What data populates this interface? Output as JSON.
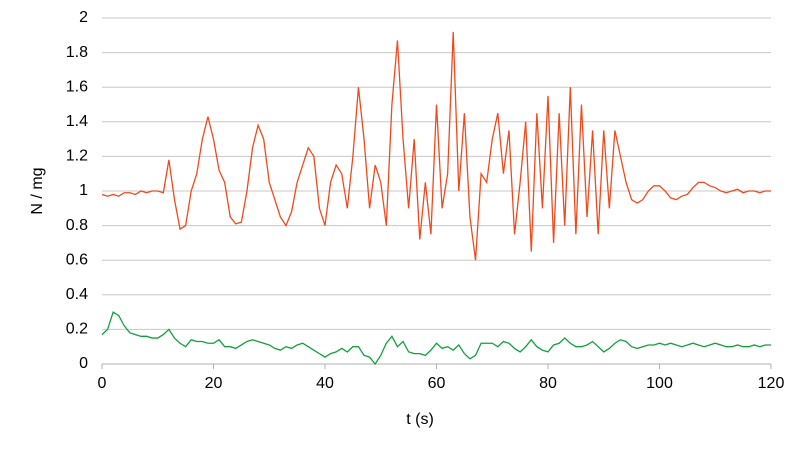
{
  "chart_data": {
    "type": "line",
    "x_label": "t (s)",
    "y_label": "N / mg",
    "x": [
      0,
      1,
      2,
      3,
      4,
      5,
      6,
      7,
      8,
      9,
      10,
      11,
      12,
      13,
      14,
      15,
      16,
      17,
      18,
      19,
      20,
      21,
      22,
      23,
      24,
      25,
      26,
      27,
      28,
      29,
      30,
      31,
      32,
      33,
      34,
      35,
      36,
      37,
      38,
      39,
      40,
      41,
      42,
      43,
      44,
      45,
      46,
      47,
      48,
      49,
      50,
      51,
      52,
      53,
      54,
      55,
      56,
      57,
      58,
      59,
      60,
      61,
      62,
      63,
      64,
      65,
      66,
      67,
      68,
      69,
      70,
      71,
      72,
      73,
      74,
      75,
      76,
      77,
      78,
      79,
      80,
      81,
      82,
      83,
      84,
      85,
      86,
      87,
      88,
      89,
      90,
      91,
      92,
      93,
      94,
      95,
      96,
      97,
      98,
      99,
      100,
      101,
      102,
      103,
      104,
      105,
      106,
      107,
      108,
      109,
      110,
      111,
      112,
      113,
      114,
      115,
      116,
      117,
      118,
      119,
      120
    ],
    "series": [
      {
        "color": "#f04a1c",
        "values": [
          0.98,
          0.97,
          0.98,
          0.97,
          0.99,
          0.99,
          0.98,
          1.0,
          0.99,
          1.0,
          1.0,
          0.99,
          1.18,
          0.95,
          0.78,
          0.8,
          1.0,
          1.1,
          1.3,
          1.43,
          1.3,
          1.12,
          1.05,
          0.85,
          0.81,
          0.82,
          1.0,
          1.25,
          1.38,
          1.3,
          1.05,
          0.95,
          0.85,
          0.8,
          0.88,
          1.05,
          1.15,
          1.25,
          1.2,
          0.9,
          0.8,
          1.05,
          1.15,
          1.1,
          0.9,
          1.2,
          1.6,
          1.3,
          0.9,
          1.15,
          1.05,
          0.8,
          1.5,
          1.87,
          1.3,
          0.9,
          1.3,
          0.72,
          1.05,
          0.75,
          1.5,
          0.9,
          1.1,
          1.92,
          1.0,
          1.45,
          0.85,
          0.6,
          1.1,
          1.05,
          1.3,
          1.45,
          1.1,
          1.35,
          0.75,
          1.05,
          1.4,
          0.65,
          1.45,
          0.9,
          1.55,
          0.7,
          1.45,
          0.8,
          1.6,
          0.75,
          1.5,
          0.85,
          1.35,
          0.75,
          1.35,
          0.9,
          1.35,
          1.2,
          1.05,
          0.95,
          0.93,
          0.95,
          1.0,
          1.03,
          1.03,
          1.0,
          0.96,
          0.95,
          0.97,
          0.98,
          1.02,
          1.05,
          1.05,
          1.03,
          1.02,
          1.0,
          0.99,
          1.0,
          1.01,
          0.99,
          1.0,
          1.0,
          0.99,
          1.0,
          1.0
        ]
      },
      {
        "color": "#13a03c",
        "values": [
          0.17,
          0.2,
          0.3,
          0.28,
          0.22,
          0.18,
          0.17,
          0.16,
          0.16,
          0.15,
          0.15,
          0.17,
          0.2,
          0.15,
          0.12,
          0.1,
          0.14,
          0.13,
          0.13,
          0.12,
          0.12,
          0.14,
          0.1,
          0.1,
          0.09,
          0.11,
          0.13,
          0.14,
          0.13,
          0.12,
          0.11,
          0.09,
          0.08,
          0.1,
          0.09,
          0.11,
          0.12,
          0.1,
          0.08,
          0.06,
          0.04,
          0.06,
          0.07,
          0.09,
          0.07,
          0.1,
          0.1,
          0.05,
          0.04,
          0.0,
          0.05,
          0.12,
          0.16,
          0.1,
          0.13,
          0.07,
          0.06,
          0.06,
          0.05,
          0.08,
          0.12,
          0.09,
          0.1,
          0.08,
          0.11,
          0.06,
          0.03,
          0.05,
          0.12,
          0.12,
          0.12,
          0.1,
          0.13,
          0.12,
          0.09,
          0.07,
          0.1,
          0.14,
          0.1,
          0.08,
          0.07,
          0.11,
          0.12,
          0.15,
          0.12,
          0.1,
          0.1,
          0.11,
          0.13,
          0.1,
          0.07,
          0.09,
          0.12,
          0.14,
          0.13,
          0.1,
          0.09,
          0.1,
          0.11,
          0.11,
          0.12,
          0.11,
          0.12,
          0.11,
          0.1,
          0.11,
          0.12,
          0.11,
          0.1,
          0.11,
          0.12,
          0.11,
          0.1,
          0.1,
          0.11,
          0.1,
          0.1,
          0.11,
          0.1,
          0.11,
          0.11
        ]
      }
    ],
    "xlim": [
      0,
      120
    ],
    "xticks": [
      0,
      20,
      40,
      60,
      80,
      100,
      120
    ],
    "ylim": [
      0,
      2
    ],
    "yticks": [
      0,
      0.2,
      0.4,
      0.6,
      0.8,
      1,
      1.2,
      1.4,
      1.6,
      1.8,
      2
    ],
    "grid": true
  }
}
